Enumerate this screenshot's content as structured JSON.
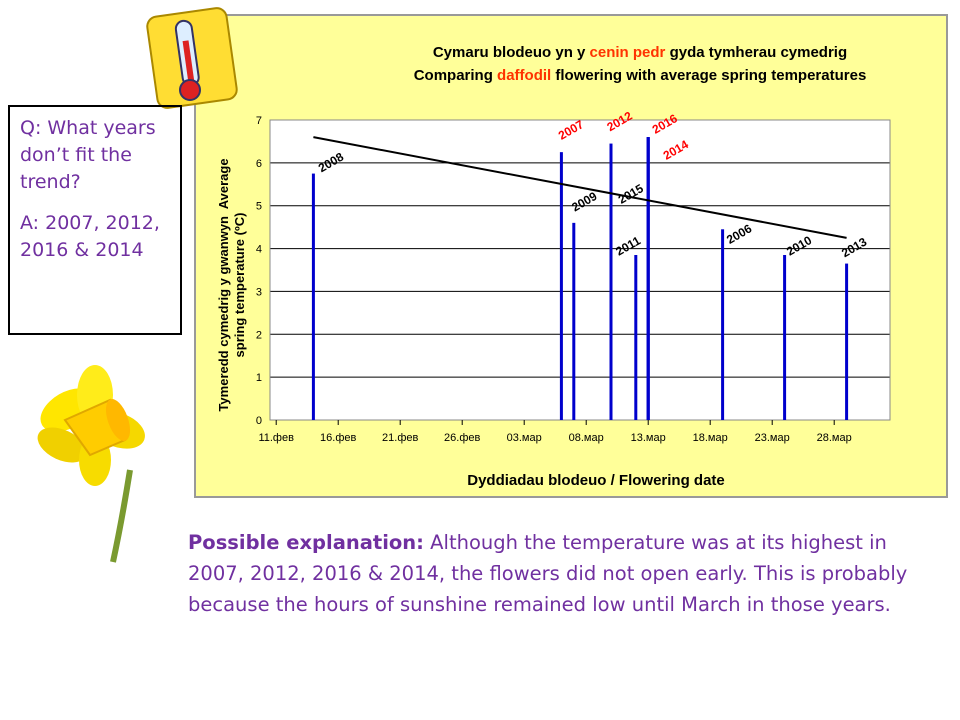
{
  "slide": {
    "question": "Q: What years don’t fit the trend?",
    "answer": "A: 2007, 2012, 2016 & 2014",
    "explanation_label": "Possible explanation:",
    "explanation": " Although the temperature was at its highest in 2007, 2012, 2016 & 2014, the flowers did not open early. This is probably because the hours of sunshine remained low until March in those years."
  },
  "chart_data": {
    "type": "bar",
    "title_line1": [
      "Cymaru blodeuo yn y ",
      "cenin pedr",
      " gyda tymherau cymedrig"
    ],
    "title_line2": [
      "Comparing ",
      "daffodil",
      " flowering with average spring temperatures"
    ],
    "title_highlight_color": "#ff3300",
    "ylabel": [
      "Tymeredd cymedrig y gwanwyn  Average",
      "spring temperature (ºC)"
    ],
    "xlabel": "Dyddiadau blodeuo / Flowering date",
    "x": [
      45,
      65,
      66,
      69,
      71,
      72,
      72,
      72,
      78,
      83,
      88
    ],
    "values": [
      5.75,
      6.25,
      4.6,
      6.45,
      3.85,
      6.6,
      6.6,
      6.6,
      4.45,
      3.85,
      3.65
    ],
    "labels": [
      "2008",
      "2007",
      "2009",
      "2012",
      "2011",
      "2016",
      "2015",
      "2014",
      "2006",
      "2010",
      "2013"
    ],
    "label_colors": [
      "#000000",
      "#ff0000",
      "#000000",
      "#ff0000",
      "#000000",
      "#ff0000",
      "#000000",
      "#ff0000",
      "#000000",
      "#000000",
      "#000000"
    ],
    "color": "#0000cc",
    "trendline": {
      "x": [
        45,
        88
      ],
      "values": [
        6.6,
        4.25
      ],
      "color": "#000000"
    },
    "xlim": [
      41.5,
      91.5
    ],
    "xticks": [
      {
        "value": 42,
        "label": "11.фев"
      },
      {
        "value": 47,
        "label": "16.фев"
      },
      {
        "value": 52,
        "label": "21.фев"
      },
      {
        "value": 57,
        "label": "26.фев"
      },
      {
        "value": 62,
        "label": "03.мар"
      },
      {
        "value": 67,
        "label": "08.мар"
      },
      {
        "value": 72,
        "label": "13.мар"
      },
      {
        "value": 77,
        "label": "18.мар"
      },
      {
        "value": 82,
        "label": "23.мар"
      },
      {
        "value": 87,
        "label": "28.мар"
      }
    ],
    "ylim": [
      0,
      7
    ],
    "yticks": [
      0,
      1,
      2,
      3,
      4,
      5,
      6,
      7
    ],
    "grid": true
  }
}
